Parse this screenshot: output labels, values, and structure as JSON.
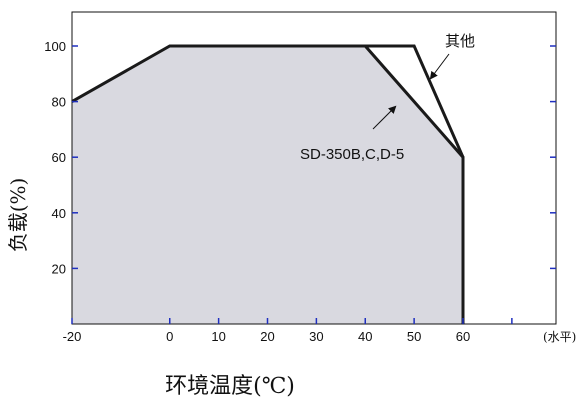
{
  "chart_data": {
    "type": "area",
    "title": "",
    "xlabel": "环境温度(℃)",
    "ylabel": "负载(%)",
    "x_unit_label": "(水平)",
    "x_ticks": [
      -20,
      0,
      10,
      20,
      30,
      40,
      50,
      60
    ],
    "y_ticks": [
      20,
      40,
      60,
      80,
      100
    ],
    "xlim": [
      -20,
      70
    ],
    "ylim": [
      0,
      110
    ],
    "grid": false,
    "series": [
      {
        "name": "SD-350B,C,D-5",
        "x": [
          -20,
          0,
          40,
          60,
          60
        ],
        "y": [
          80,
          100,
          100,
          60,
          0
        ],
        "fill": true
      },
      {
        "name": "其他",
        "x": [
          40,
          50,
          60
        ],
        "y": [
          100,
          100,
          60
        ],
        "fill": false
      }
    ],
    "annotations": [
      {
        "text": "其他",
        "target": "其他"
      },
      {
        "text": "SD-350B,C,D-5",
        "target": "SD-350B,C,D-5"
      }
    ],
    "colors": {
      "fill": "#d9d9e0",
      "line": "#1a1a1a",
      "tick": "#1f2fbf"
    }
  }
}
